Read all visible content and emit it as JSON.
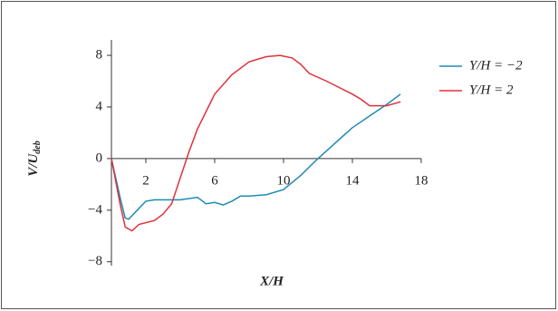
{
  "chart_data": {
    "type": "line",
    "xlabel": "X/H",
    "ylabel": "V/U",
    "ylabel_sub": "deb",
    "xlim": [
      0,
      18
    ],
    "ylim": [
      -8.3,
      9.2
    ],
    "xticks": [
      2,
      6,
      10,
      14,
      18
    ],
    "yticks": [
      {
        "value": -8,
        "label": "−8"
      },
      {
        "value": -4,
        "label": "−4"
      },
      0,
      4,
      8
    ],
    "legend": "upper-right",
    "series": [
      {
        "name": "Y/H = −2",
        "color": "#1f8ab5",
        "x": [
          0,
          0.5,
          0.8,
          1,
          1.5,
          2,
          2.5,
          4,
          5,
          5.5,
          6,
          6.5,
          7,
          7.5,
          8,
          9,
          10,
          11,
          12,
          13,
          14,
          15,
          16,
          16.8
        ],
        "values": [
          0,
          -3,
          -4.6,
          -4.7,
          -4,
          -3.3,
          -3.2,
          -3.2,
          -3,
          -3.5,
          -3.4,
          -3.6,
          -3.3,
          -2.9,
          -2.9,
          -2.8,
          -2.4,
          -1.3,
          0,
          1.2,
          2.4,
          3.3,
          4.2,
          5
        ]
      },
      {
        "name": "Y/H = 2",
        "color": "#e2303a",
        "x": [
          0,
          0.5,
          0.8,
          1.2,
          1.6,
          2.5,
          3,
          3.5,
          4,
          4.5,
          5,
          6,
          7,
          8,
          9,
          9.8,
          10.5,
          11,
          11.5,
          12.5,
          14,
          14.5,
          15,
          16,
          16.8
        ],
        "values": [
          0,
          -3.5,
          -5.3,
          -5.6,
          -5.1,
          -4.8,
          -4.3,
          -3.5,
          -1.5,
          0.5,
          2.3,
          5,
          6.5,
          7.5,
          7.9,
          8,
          7.8,
          7.3,
          6.6,
          6,
          5,
          4.6,
          4.1,
          4.1,
          4.4
        ]
      }
    ]
  }
}
